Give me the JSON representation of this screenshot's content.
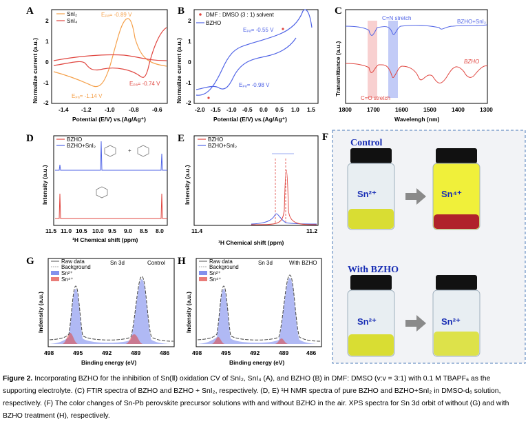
{
  "panels": {
    "A": {
      "label": "A",
      "xlabel": "Potential (E/V) vs.(Ag/Ag⁺)",
      "ylabel": "Normalize current (a.u.)",
      "legend": [
        "SnI₂",
        "SnI₄"
      ],
      "ann1": "Eₚₐ= -0.89 V",
      "ann2": "Eₚₐ= -0.74 V",
      "ann3": "Eₚₐ= -1.14 V",
      "xticks": [
        "-1.4",
        "-1.2",
        "-1.0",
        "-0.8",
        "-0.6"
      ],
      "yticks": [
        "2",
        "1",
        "0",
        "-1",
        "-2"
      ]
    },
    "B": {
      "label": "B",
      "xlabel": "Potential (E/V) vs.(Ag/Ag⁺)",
      "ylabel": "Normalize current (a.u.)",
      "legend": [
        "DMF : DMSO (3 : 1) solvent",
        "BZHO"
      ],
      "ann1": "Eₚₐ= -0.55 V",
      "ann2": "Eₚₐ= -0.98 V",
      "xticks": [
        "-2.0",
        "-1.5",
        "-1.0",
        "-0.5",
        "0.0",
        "0.5",
        "1.0",
        "1.5"
      ],
      "yticks": [
        "2",
        "1",
        "0",
        "-1",
        "-2"
      ]
    },
    "C": {
      "label": "C",
      "xlabel": "Wavelengh (nm)",
      "ylabel": "Transmittance (a.u.)",
      "ann_top": "C=N stretch",
      "ann_bot": "C=O stretch",
      "series_top": "BZHO+SnI₂",
      "series_bot": "BZHO",
      "xticks": [
        "1800",
        "1700",
        "1600",
        "1500",
        "1400",
        "1300"
      ]
    },
    "D": {
      "label": "D",
      "xlabel": "¹H Chemical shift (ppm)",
      "ylabel": "Intensity (a.u.)",
      "legend": [
        "BZHO",
        "BZHO+SnI₂"
      ],
      "xticks": [
        "11.5",
        "11.0",
        "10.5",
        "10.0",
        "9.5",
        "9.0",
        "8.5",
        "8.0"
      ]
    },
    "E": {
      "label": "E",
      "xlabel": "¹H Chemical shift (ppm)",
      "ylabel": "Intensity (a.u.)",
      "legend": [
        "BZHO",
        "BZHO+SnI₂"
      ],
      "xticks": [
        "11.4",
        "11.2"
      ]
    },
    "F": {
      "label": "F",
      "control": "Control",
      "with": "With BZHO",
      "v1": "Sn²⁺",
      "v2": "Sn⁴⁺",
      "v3": "Sn²⁺",
      "v4": "Sn²⁺"
    },
    "G": {
      "label": "G",
      "xlabel": "Binding energy (eV)",
      "ylabel": "Indensity (a.u.)",
      "legend": [
        "Raw data",
        "Background",
        "Sn²⁺",
        "Sn⁴⁺"
      ],
      "orbit": "Sn 3d",
      "tag": "Control",
      "xticks": [
        "498",
        "495",
        "492",
        "489",
        "486"
      ]
    },
    "H": {
      "label": "H",
      "xlabel": "Binding energy (eV)",
      "ylabel": "Indensity (a.u.)",
      "legend": [
        "Raw data",
        "Background",
        "Sn²⁺",
        "Sn⁴⁺"
      ],
      "orbit": "Sn 3d",
      "tag": "With BZHO",
      "xticks": [
        "498",
        "495",
        "492",
        "489",
        "486"
      ]
    }
  },
  "caption": {
    "fig": "Figure 2.",
    "text": " Incorporating BZHO for the inhibition of Sn(Ⅱ) oxidation CV of SnI₂, SnI₄ (A), and BZHO (B) in DMF: DMSO (v:v = 3:1) with 0.1 M TBAPF₆ as the supporting electrolyte. (C) FTIR spectra of BZHO and BZHO + SnI₂, respectively. (D, E) ¹H NMR spectra of pure BZHO and BZHO+SnI₂ in DMSO-d₆ solution, respectively. (F) The color changes of Sn-Pb perovskite precursor solutions with and without BZHO in the air. XPS spectra for Sn 3d orbit of without (G) and with BZHO treatment (H), respectively."
  },
  "colors": {
    "orange": "#f5a04a",
    "red": "#e0453f",
    "blue": "#4f63e6",
    "pinkband": "#f4b0b0",
    "blueband": "#9aa9f2",
    "vialframe": "#4a78b8"
  }
}
